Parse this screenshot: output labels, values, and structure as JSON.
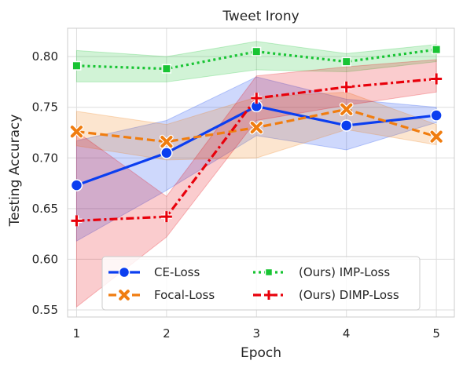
{
  "chart_data": {
    "type": "line",
    "title": "Tweet Irony",
    "xlabel": "Epoch",
    "ylabel": "Testing Accuracy",
    "x": [
      1,
      2,
      3,
      4,
      5
    ],
    "xticks": [
      "1",
      "2",
      "3",
      "4",
      "5"
    ],
    "yticks": [
      "0.55",
      "0.60",
      "0.65",
      "0.70",
      "0.75",
      "0.80"
    ],
    "ytick_values": [
      0.55,
      0.6,
      0.65,
      0.7,
      0.75,
      0.8
    ],
    "xlim": [
      0.9,
      5.2
    ],
    "ylim": [
      0.543,
      0.828
    ],
    "grid": true,
    "legend_position": "bottom-center",
    "series": [
      {
        "name": "CE-Loss",
        "color": "#0b3ef0",
        "marker": "circle",
        "dash": "solid",
        "values": [
          0.673,
          0.705,
          0.751,
          0.732,
          0.742
        ],
        "lower": [
          0.618,
          0.668,
          0.722,
          0.708,
          0.735
        ],
        "upper": [
          0.717,
          0.737,
          0.78,
          0.758,
          0.75
        ]
      },
      {
        "name": "Focal-Loss",
        "color": "#f07d10",
        "marker": "x",
        "dash": "dashed",
        "values": [
          0.726,
          0.716,
          0.73,
          0.748,
          0.721
        ],
        "lower": [
          0.712,
          0.698,
          0.7,
          0.728,
          0.713
        ],
        "upper": [
          0.746,
          0.733,
          0.76,
          0.765,
          0.733
        ]
      },
      {
        "name": "(Ours) IMP-Loss",
        "color": "#18c433",
        "marker": "square",
        "dash": "dotted",
        "values": [
          0.791,
          0.788,
          0.805,
          0.795,
          0.807
        ],
        "lower": [
          0.775,
          0.775,
          0.787,
          0.785,
          0.795
        ],
        "upper": [
          0.806,
          0.8,
          0.815,
          0.803,
          0.812
        ]
      },
      {
        "name": "(Ours) DIMP-Loss",
        "color": "#e8000b",
        "marker": "plus",
        "dash": "dashdot",
        "values": [
          0.638,
          0.642,
          0.759,
          0.77,
          0.778
        ],
        "lower": [
          0.553,
          0.622,
          0.737,
          0.752,
          0.765
        ],
        "upper": [
          0.726,
          0.662,
          0.781,
          0.79,
          0.797
        ]
      }
    ]
  }
}
